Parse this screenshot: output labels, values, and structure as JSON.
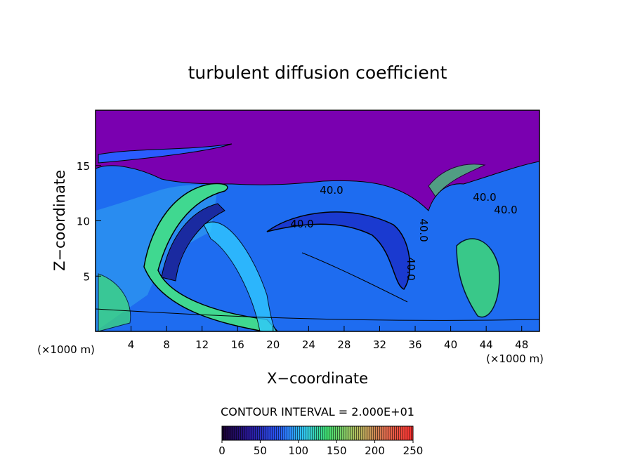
{
  "chart_data": {
    "type": "contour",
    "title": "turbulent diffusion coefficient",
    "xlabel": "X−coordinate",
    "ylabel": "Z−coordinate",
    "x_unit": "(×1000 m)",
    "y_unit": "(×1000 m)",
    "xlim": [
      0,
      50
    ],
    "ylim": [
      0,
      20
    ],
    "xticks": [
      4,
      8,
      12,
      16,
      20,
      24,
      28,
      32,
      36,
      40,
      44,
      48
    ],
    "yticks": [
      5,
      10,
      15
    ],
    "contour_interval_text": "CONTOUR INTERVAL = 2.000E+01",
    "contour_labels": [
      "40.0",
      "40.0",
      "40.0",
      "40.0",
      "40.0",
      "40.0"
    ],
    "colorbar": {
      "lim": [
        0,
        250
      ],
      "ticks": [
        0,
        50,
        100,
        150,
        200,
        250
      ]
    }
  }
}
